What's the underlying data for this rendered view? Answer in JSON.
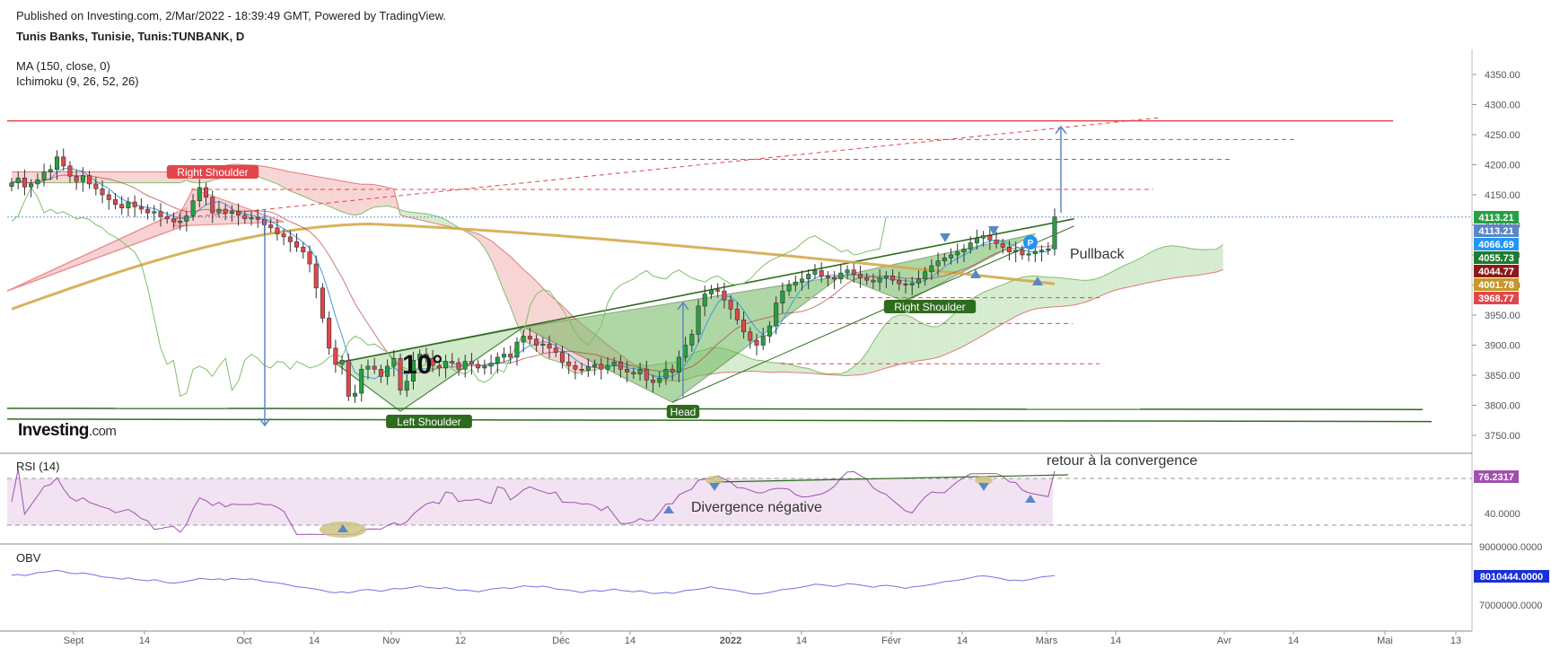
{
  "header": {
    "published": "Published on Investing.com, 2/Mar/2022 - 18:39:49 GMT, Powered by TradingView.",
    "symbol": "Tunis Banks, Tunisie, Tunis:TUNBANK, D",
    "indicator_ma": "MA (150, close, 0)",
    "indicator_ichimoku": "Ichimoku (9, 26, 52, 26)"
  },
  "logo": {
    "main": "Investing",
    "suffix": ".com"
  },
  "rsi": {
    "label": "RSI (14)"
  },
  "obv": {
    "label": "OBV"
  },
  "colors": {
    "up": "#26a041",
    "down": "#e0474c",
    "ma": "#d4aa4a",
    "cloud_bull": "#c8e6c0",
    "cloud_bear": "#f6c7c7",
    "pattern": "#6fb85e",
    "rsi_line": "#a050b0",
    "rsi_band": "#f2e3f2",
    "obv_line": "#6f74e0",
    "arrow": "#5a87c6",
    "trend": "#2f6b1f"
  },
  "chart_data": [
    {
      "type": "candlestick",
      "title": "Tunis Banks, Tunisie, Tunis:TUNBANK, D",
      "x_tick_labels": [
        "Sept",
        "14",
        "Oct",
        "14",
        "Nov",
        "12",
        "Déc",
        "14",
        "2022",
        "14",
        "Févr",
        "14",
        "Mars",
        "14",
        "Avr",
        "14",
        "Mai",
        "13"
      ],
      "y_tick_labels": [
        "4350.00",
        "4300.00",
        "4250.00",
        "4200.00",
        "4150.00",
        "4100.00",
        "4050.00",
        "4000.00",
        "3950.00",
        "3900.00",
        "3850.00",
        "3800.00",
        "3750.00"
      ],
      "ylim": [
        3730,
        4375
      ],
      "close": [
        4170,
        4178,
        4163,
        4168,
        4175,
        4188,
        4192,
        4213,
        4198,
        4181,
        4172,
        4182,
        4168,
        4160,
        4150,
        4142,
        4134,
        4128,
        4138,
        4130,
        4126,
        4120,
        4122,
        4114,
        4110,
        4105,
        4106,
        4115,
        4140,
        4162,
        4146,
        4120,
        4126,
        4119,
        4122,
        4116,
        4110,
        4112,
        4109,
        4100,
        4095,
        4085,
        4080,
        4072,
        4063,
        4055,
        4035,
        3995,
        3945,
        3895,
        3868,
        3875,
        3815,
        3820,
        3860,
        3865,
        3860,
        3848,
        3865,
        3878,
        3825,
        3840,
        3875,
        3885,
        3878,
        3866,
        3862,
        3873,
        3871,
        3860,
        3873,
        3868,
        3862,
        3865,
        3870,
        3880,
        3885,
        3880,
        3905,
        3915,
        3910,
        3900,
        3902,
        3895,
        3888,
        3872,
        3866,
        3860,
        3858,
        3864,
        3868,
        3860,
        3866,
        3872,
        3860,
        3855,
        3852,
        3860,
        3842,
        3838,
        3845,
        3860,
        3855,
        3880,
        3900,
        3918,
        3965,
        3985,
        3992,
        3990,
        3975,
        3960,
        3942,
        3922,
        3908,
        3900,
        3915,
        3932,
        3970,
        3990,
        4000,
        4005,
        4010,
        4018,
        4024,
        4015,
        4012,
        4010,
        4020,
        4025,
        4018,
        4012,
        4008,
        4005,
        4012,
        4015,
        4008,
        4002,
        4000,
        4003,
        4010,
        4022,
        4032,
        4040,
        4045,
        4050,
        4055,
        4060,
        4070,
        4078,
        4082,
        4075,
        4069,
        4063,
        4055,
        4058,
        4050,
        4052,
        4056,
        4058,
        4060,
        4113.21
      ],
      "series": [
        {
          "name": "MA (150, close, 0)",
          "last": 4001.78
        }
      ],
      "price_labels": [
        "4113.21",
        "4113.21",
        "4066.69",
        "4055.73",
        "4044.77",
        "4001.78",
        "3968.77"
      ],
      "horizontal_levels": [
        4273,
        4242,
        4209,
        4159,
        3979,
        3936,
        3869
      ],
      "annotations": [
        "Right Shoulder",
        "10°",
        "Left Shoulder",
        "Head",
        "Right Shoulder",
        "Pullback"
      ]
    },
    {
      "type": "line",
      "title": "RSI (14)",
      "y_tick_labels": [
        "40.0000"
      ],
      "last_value": "76.2317",
      "upper_band": 70,
      "lower_band": 30,
      "annotations": [
        "Divergence négative",
        "retour à la convergence"
      ]
    },
    {
      "type": "line",
      "title": "OBV",
      "y_tick_labels": [
        "9000000.0000",
        "7000000.0000"
      ],
      "last_value": "8010444.0000"
    }
  ]
}
